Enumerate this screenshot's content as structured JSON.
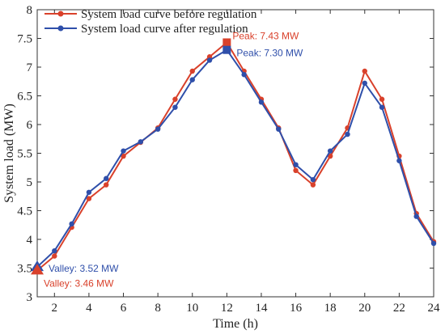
{
  "chart_data": {
    "type": "line",
    "xlabel": "Time (h)",
    "ylabel": "System load (MW)",
    "xlim": [
      1,
      24
    ],
    "ylim": [
      3,
      8
    ],
    "x_ticks": [
      2,
      4,
      6,
      8,
      10,
      12,
      14,
      16,
      18,
      20,
      22,
      24
    ],
    "y_ticks": [
      3,
      3.5,
      4,
      4.5,
      5,
      5.5,
      6,
      6.5,
      7,
      7.5,
      8
    ],
    "y_tick_labels": [
      "3",
      "3.5",
      "4",
      "4.5",
      "5",
      "5.5",
      "6",
      "6.5",
      "7",
      "7.5",
      "8"
    ],
    "grid": false,
    "legend_position": "top-left",
    "x": [
      1,
      2,
      3,
      4,
      5,
      6,
      7,
      8,
      9,
      10,
      11,
      12,
      13,
      14,
      15,
      16,
      17,
      18,
      19,
      20,
      21,
      22,
      23,
      24
    ],
    "series": [
      {
        "name": "System load curve before regulation",
        "color": "#d9412b",
        "values": [
          3.46,
          3.71,
          4.21,
          4.71,
          4.95,
          5.45,
          5.69,
          5.94,
          6.44,
          6.93,
          7.18,
          7.43,
          6.93,
          6.44,
          5.94,
          5.2,
          4.95,
          5.45,
          5.94,
          6.93,
          6.44,
          5.45,
          4.45,
          3.96
        ]
      },
      {
        "name": "System load curve after regulation",
        "color": "#2f4faa",
        "values": [
          3.52,
          3.8,
          4.27,
          4.82,
          5.06,
          5.54,
          5.7,
          5.92,
          6.3,
          6.78,
          7.12,
          7.3,
          6.87,
          6.39,
          5.92,
          5.3,
          5.04,
          5.54,
          5.83,
          6.72,
          6.3,
          5.37,
          4.4,
          3.93
        ]
      }
    ],
    "annotations": [
      {
        "text": "Peak: 7.43 MW",
        "x": 12,
        "y": 7.43,
        "series": 0,
        "marker": "square"
      },
      {
        "text": "Peak: 7.30 MW",
        "x": 12,
        "y": 7.3,
        "series": 1,
        "marker": "square"
      },
      {
        "text": "Valley: 3.52 MW",
        "x": 1,
        "y": 3.52,
        "series": 1,
        "marker": "triangle"
      },
      {
        "text": "Valley: 3.46 MW",
        "x": 1,
        "y": 3.46,
        "series": 0,
        "marker": "triangle"
      }
    ]
  }
}
